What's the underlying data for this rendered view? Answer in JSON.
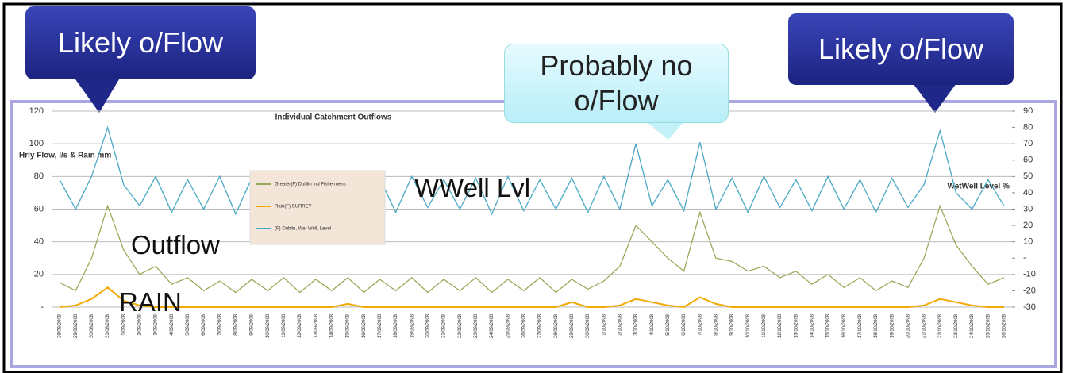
{
  "chart_data": {
    "type": "line",
    "title": "Individual Catchment Outflows",
    "y_label": "Hrly Flow, l/s & Rain mm",
    "y2_label": "WetWell Level %",
    "annotations": [
      "Likely o/Flow",
      "Probably no o/Flow",
      "Likely o/Flow",
      "WWell Lvl",
      "Outflow",
      "RAIN"
    ],
    "categories": [
      "28/08/2008",
      "29/08/2008",
      "30/08/2008",
      "31/08/2008",
      "1/09/2008",
      "2/09/2008",
      "3/09/2008",
      "4/09/2008",
      "5/09/2008",
      "6/09/2008",
      "7/09/2008",
      "8/09/2008",
      "9/09/2008",
      "10/09/2008",
      "11/09/2008",
      "12/09/2008",
      "13/09/2008",
      "14/09/2008",
      "15/09/2008",
      "16/09/2008",
      "17/09/2008",
      "18/09/2008",
      "19/09/2008",
      "20/09/2008",
      "21/09/2008",
      "22/09/2008",
      "23/09/2008",
      "24/09/2008",
      "25/09/2008",
      "26/09/2008",
      "27/09/2008",
      "28/09/2008",
      "29/09/2008",
      "30/09/2008",
      "1/10/2008",
      "2/10/2008",
      "3/10/2008",
      "4/10/2008",
      "5/10/2008",
      "6/10/2008",
      "7/10/2008",
      "8/10/2008",
      "9/10/2008",
      "10/10/2008",
      "11/10/2008",
      "12/10/2008",
      "13/10/2008",
      "14/10/2008",
      "15/10/2008",
      "16/10/2008",
      "17/10/2008",
      "18/10/2008",
      "19/10/2008",
      "20/10/2008",
      "21/10/2008",
      "22/10/2008",
      "23/10/2008",
      "24/10/2008",
      "25/10/2008",
      "26/10/2008"
    ],
    "series": [
      {
        "name": "Greater(F) Dublin Ind Fishermens",
        "color": "#9aaa5a",
        "values": [
          15,
          10,
          30,
          62,
          35,
          20,
          25,
          14,
          18,
          10,
          16,
          9,
          17,
          10,
          18,
          9,
          17,
          10,
          18,
          9,
          17,
          10,
          18,
          9,
          17,
          10,
          18,
          9,
          17,
          10,
          18,
          9,
          17,
          11,
          16,
          25,
          50,
          40,
          30,
          22,
          58,
          30,
          28,
          22,
          25,
          18,
          22,
          14,
          20,
          12,
          18,
          10,
          16,
          12,
          30,
          62,
          38,
          25,
          14,
          18
        ]
      },
      {
        "name": "Rain(F) SURREY",
        "color": "#f2a900",
        "values": [
          0,
          1,
          5,
          12,
          4,
          1,
          0,
          0,
          0,
          0,
          0,
          0,
          0,
          0,
          0,
          0,
          0,
          0,
          2,
          0,
          0,
          0,
          0,
          0,
          0,
          0,
          0,
          0,
          0,
          0,
          0,
          0,
          3,
          0,
          0,
          1,
          5,
          3,
          1,
          0,
          6,
          2,
          0,
          0,
          0,
          0,
          0,
          0,
          0,
          0,
          0,
          0,
          0,
          0,
          1,
          5,
          3,
          1,
          0,
          0
        ]
      },
      {
        "name": "(F) Dublin, Wet Well, Level",
        "color": "#4aa8c4",
        "axis": "y2",
        "values": [
          48,
          30,
          50,
          80,
          45,
          32,
          50,
          28,
          48,
          30,
          50,
          27,
          49,
          31,
          48,
          28,
          50,
          30,
          47,
          29,
          49,
          28,
          50,
          31,
          48,
          30,
          49,
          27,
          50,
          29,
          48,
          30,
          49,
          28,
          50,
          30,
          70,
          32,
          48,
          29,
          71,
          30,
          49,
          28,
          50,
          31,
          48,
          29,
          50,
          30,
          48,
          28,
          49,
          31,
          45,
          78,
          40,
          30,
          48,
          32
        ]
      }
    ],
    "ylim": [
      0,
      120
    ],
    "yticks": [
      {
        "value": 0,
        "label": "-"
      },
      20,
      40,
      60,
      80,
      100,
      120
    ],
    "y2lim": [
      -30,
      90
    ],
    "y2ticks": [
      -30,
      -20,
      -10,
      {
        "value": 0,
        "label": "-"
      },
      10,
      20,
      30,
      40,
      50,
      60,
      70,
      80,
      90
    ],
    "grid": true
  }
}
